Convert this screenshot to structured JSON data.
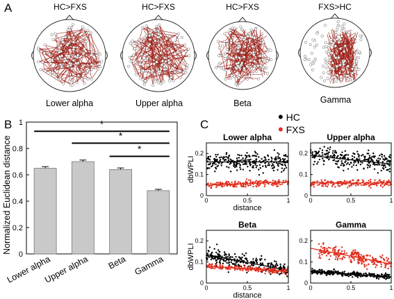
{
  "figure": {
    "panel_a_letter": "A",
    "panel_b_letter": "B",
    "panel_c_letter": "C"
  },
  "panel_a": {
    "contrasts": [
      "HC>FXS",
      "HC>FXS",
      "HC>FXS",
      "FXS>HC"
    ],
    "bands": [
      "Lower alpha",
      "Upper alpha",
      "Beta",
      "Gamma"
    ],
    "edge_color": "#9b1c14"
  },
  "panel_b": {
    "ylabel": "Normalized  Euclidean distance",
    "significance_marker": "*"
  },
  "panel_c": {
    "legend": [
      {
        "marker": "•",
        "label": "HC",
        "color": "#000000"
      },
      {
        "marker": "•",
        "label": "FXS",
        "color": "#e03020"
      }
    ],
    "subplots": [
      {
        "title": "Lower alpha",
        "ylabel": "dbWPLI",
        "xlabel": "distance"
      },
      {
        "title": "Upper alpha",
        "ylabel": "",
        "xlabel": ""
      },
      {
        "title": "Beta",
        "ylabel": "dbWPLI",
        "xlabel": "distance"
      },
      {
        "title": "Gamma",
        "ylabel": "",
        "xlabel": ""
      }
    ]
  },
  "chart_data": [
    {
      "type": "bar",
      "categories": [
        "Lower alpha",
        "Upper alpha",
        "Beta",
        "Gamma"
      ],
      "values": [
        0.65,
        0.7,
        0.64,
        0.48
      ],
      "errors": [
        0.012,
        0.012,
        0.012,
        0.01
      ],
      "ylabel": "Normalized  Euclidean distance",
      "ylim": [
        0,
        1
      ],
      "yticks": [
        0,
        0.2,
        0.4,
        0.6,
        0.8,
        1
      ],
      "bar_color": "#c9c9c9",
      "significance": [
        {
          "from": "Lower alpha",
          "to": "Gamma",
          "label": "*"
        },
        {
          "from": "Upper alpha",
          "to": "Gamma",
          "label": "*"
        },
        {
          "from": "Beta",
          "to": "Gamma",
          "label": "*"
        }
      ]
    },
    {
      "type": "scatter",
      "title": "Lower alpha",
      "xlabel": "distance",
      "ylabel": "dbWPLI",
      "xlim": [
        0,
        1
      ],
      "ylim": [
        0,
        0.25
      ],
      "xticks": [
        0,
        0.5,
        1
      ],
      "yticks": [
        0,
        0.1,
        0.2
      ],
      "series": [
        {
          "name": "HC",
          "color": "#000000",
          "fit": [
            0.16,
            0.16
          ],
          "spread": 0.04,
          "n": 260
        },
        {
          "name": "FXS",
          "color": "#e03020",
          "fit": [
            0.05,
            0.065
          ],
          "spread": 0.015,
          "n": 200
        }
      ]
    },
    {
      "type": "scatter",
      "title": "Upper alpha",
      "xlabel": "",
      "ylabel": "",
      "xlim": [
        0,
        1
      ],
      "ylim": [
        0,
        0.25
      ],
      "xticks": [
        0,
        0.5,
        1
      ],
      "yticks": [
        0,
        0.1,
        0.2
      ],
      "series": [
        {
          "name": "HC",
          "color": "#000000",
          "fit": [
            0.19,
            0.15
          ],
          "spread": 0.04,
          "n": 260
        },
        {
          "name": "FXS",
          "color": "#e03020",
          "fit": [
            0.06,
            0.06
          ],
          "spread": 0.015,
          "n": 200
        }
      ]
    },
    {
      "type": "scatter",
      "title": "Beta",
      "xlabel": "distance",
      "ylabel": "dbWPLI",
      "xlim": [
        0,
        1
      ],
      "ylim": [
        0,
        0.25
      ],
      "xticks": [
        0,
        0.5,
        1
      ],
      "yticks": [
        0,
        0.1,
        0.2
      ],
      "series": [
        {
          "name": "HC",
          "color": "#000000",
          "fit": [
            0.135,
            0.06
          ],
          "spread": 0.03,
          "n": 260
        },
        {
          "name": "FXS",
          "color": "#e03020",
          "fit": [
            0.08,
            0.055
          ],
          "spread": 0.012,
          "n": 200
        }
      ]
    },
    {
      "type": "scatter",
      "title": "Gamma",
      "xlabel": "",
      "ylabel": "",
      "xlim": [
        0,
        1
      ],
      "ylim": [
        0,
        0.25
      ],
      "xticks": [
        0,
        0.5,
        1
      ],
      "yticks": [
        0,
        0.1,
        0.2
      ],
      "series": [
        {
          "name": "HC",
          "color": "#000000",
          "fit": [
            0.055,
            0.03
          ],
          "spread": 0.012,
          "n": 260
        },
        {
          "name": "FXS",
          "color": "#e03020",
          "fit": [
            0.165,
            0.09
          ],
          "spread": 0.03,
          "n": 240
        }
      ]
    }
  ]
}
